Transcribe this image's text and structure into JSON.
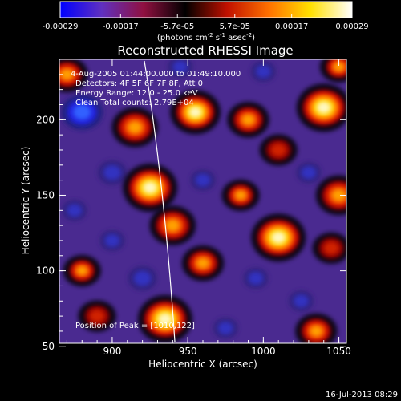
{
  "chart_data": {
    "type": "heatmap",
    "title": "Reconstructed RHESSI Image",
    "xlabel": "Heliocentric X (arcsec)",
    "ylabel": "Heliocentric Y (arcsec)",
    "xlim": [
      865,
      1055
    ],
    "ylim": [
      52,
      240
    ],
    "x_ticks": [
      "900",
      "950",
      "1000",
      "1050"
    ],
    "y_ticks": [
      "50",
      "100",
      "150",
      "200"
    ],
    "x_tick_values": [
      900,
      950,
      1000,
      1050
    ],
    "y_tick_values": [
      50,
      100,
      150,
      200
    ],
    "colorbar": {
      "ticks": [
        "-0.00029",
        "-0.00017",
        "-5.7e-05",
        "5.7e-05",
        "0.00017",
        "0.00029"
      ],
      "tick_values": [
        -0.00029,
        -0.00017,
        -5.7e-05,
        5.7e-05,
        0.00017,
        0.00029
      ],
      "units_label": "(photons cm",
      "units_exp1": "-2",
      "units_mid": " s",
      "units_exp2": "-1",
      "units_mid2": " asec",
      "units_exp3": "-2",
      "units_end": ")",
      "colors": [
        "#0000ff",
        "#6030c0",
        "#901040",
        "#000000",
        "#c01000",
        "#ff7000",
        "#ffe000",
        "#ffffff"
      ]
    },
    "annotations": {
      "time": "4-Aug-2005 01:44:00.000 to 01:49:10.000",
      "detectors": "Detectors: 4F 5F 6F 7F 8F, Att 0",
      "energy": "Energy Range: 12.0 - 25.0 keV",
      "clean": "Clean    Total counts: 2.79E+04",
      "peak": "Position of Peak = [1010,122]"
    },
    "blobs": [
      {
        "x": 880,
        "y": 205,
        "v": -1.0
      },
      {
        "x": 915,
        "y": 195,
        "v": 0.8
      },
      {
        "x": 875,
        "y": 140,
        "v": -0.6
      },
      {
        "x": 900,
        "y": 165,
        "v": -0.7
      },
      {
        "x": 925,
        "y": 155,
        "v": 1.0
      },
      {
        "x": 955,
        "y": 205,
        "v": 0.9
      },
      {
        "x": 990,
        "y": 200,
        "v": 0.7
      },
      {
        "x": 1040,
        "y": 208,
        "v": 1.0
      },
      {
        "x": 1010,
        "y": 180,
        "v": 0.5
      },
      {
        "x": 960,
        "y": 160,
        "v": -0.5
      },
      {
        "x": 985,
        "y": 150,
        "v": 0.6
      },
      {
        "x": 1030,
        "y": 165,
        "v": -0.5
      },
      {
        "x": 1050,
        "y": 150,
        "v": 0.8
      },
      {
        "x": 900,
        "y": 120,
        "v": -0.6
      },
      {
        "x": 940,
        "y": 130,
        "v": 0.8
      },
      {
        "x": 1010,
        "y": 122,
        "v": 1.0
      },
      {
        "x": 1045,
        "y": 115,
        "v": 0.5
      },
      {
        "x": 880,
        "y": 100,
        "v": 0.6
      },
      {
        "x": 920,
        "y": 95,
        "v": -0.7
      },
      {
        "x": 960,
        "y": 105,
        "v": 0.7
      },
      {
        "x": 995,
        "y": 95,
        "v": -0.5
      },
      {
        "x": 1025,
        "y": 80,
        "v": -0.6
      },
      {
        "x": 890,
        "y": 70,
        "v": 0.5
      },
      {
        "x": 935,
        "y": 68,
        "v": 1.0
      },
      {
        "x": 975,
        "y": 62,
        "v": -0.5
      },
      {
        "x": 1035,
        "y": 60,
        "v": 0.7
      },
      {
        "x": 870,
        "y": 230,
        "v": 0.7
      },
      {
        "x": 1000,
        "y": 232,
        "v": -0.6
      },
      {
        "x": 945,
        "y": 235,
        "v": -0.5
      },
      {
        "x": 1050,
        "y": 235,
        "v": 0.6
      }
    ]
  },
  "footer": {
    "date": "16-Jul-2013 08:29"
  }
}
